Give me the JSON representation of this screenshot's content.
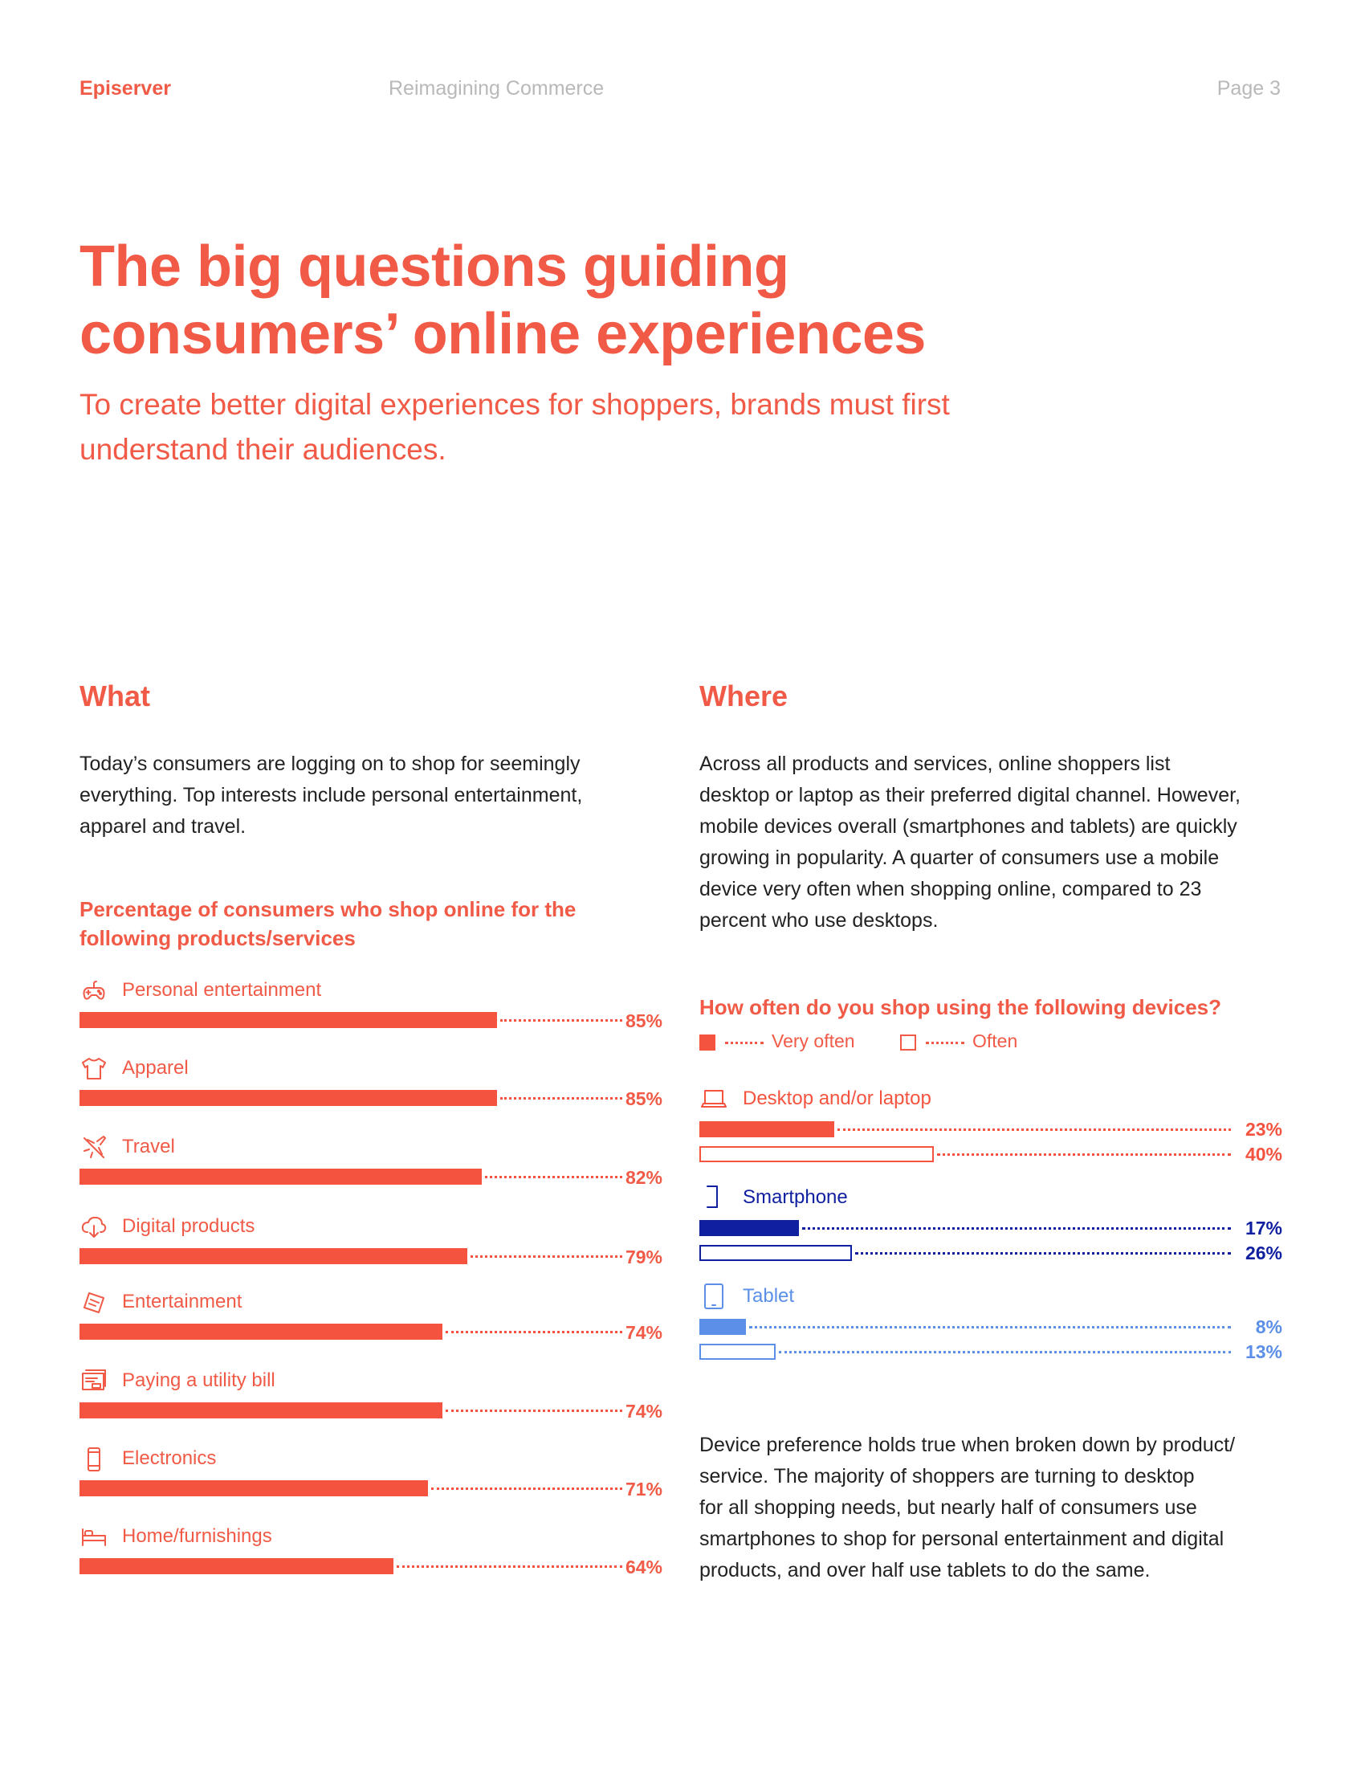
{
  "header": {
    "brand": "Episerver",
    "running_title": "Reimagining Commerce",
    "page": "Page 3"
  },
  "hero": {
    "title_lines": [
      "The big questions guiding",
      "consumers’ online experiences"
    ],
    "subtitle_lines": [
      "To create better digital experiences for shoppers, brands must first",
      "understand their audiences."
    ]
  },
  "what": {
    "heading": "What",
    "body_lines": [
      "Today’s consumers are logging on to shop for seemingly",
      "everything. Top interests include personal entertainment,",
      "apparel and travel."
    ],
    "chart_title_lines": [
      "Percentage of consumers who shop online for the",
      "following products/services"
    ]
  },
  "where": {
    "heading": "Where",
    "body_lines": [
      "Across all products and services, online shoppers list",
      "desktop or laptop as their preferred digital channel. However,",
      "mobile devices overall (smartphones and tablets) are quickly",
      "growing in popularity. A quarter of consumers use a mobile",
      "device very often when shopping online, compared to 23",
      "percent who use desktops."
    ],
    "chart_title": "How often do you shop using the following devices?",
    "legend": {
      "very_often": "Very often",
      "often": "Often"
    },
    "footer_lines": [
      "Device preference holds true when broken down by product/",
      "service. The majority of shoppers are turning to desktop",
      "for all shopping needs, but nearly half of consumers use",
      "smartphones to shop for personal entertainment and digital",
      "products, and over half use tablets to do the same."
    ]
  },
  "colors": {
    "accent": "#f05a46",
    "bar_orange": "#f4543f",
    "smartphone": "#0f1fa0",
    "tablet": "#5b8fe8"
  },
  "chart_data": [
    {
      "type": "bar",
      "orientation": "horizontal",
      "title": "Percentage of consumers who shop online for the following products/services",
      "categories": [
        "Personal entertainment",
        "Apparel",
        "Travel",
        "Digital products",
        "Entertainment",
        "Paying a utility bill",
        "Electronics",
        "Home/furnishings"
      ],
      "icons": [
        "gamepad-icon",
        "tshirt-icon",
        "plane-icon",
        "cloud-download-icon",
        "ticket-icon",
        "receipt-icon",
        "phone-icon",
        "bed-icon"
      ],
      "values": [
        85,
        85,
        82,
        79,
        74,
        74,
        71,
        64
      ],
      "labels": [
        "85%",
        "85%",
        "82%",
        "79%",
        "74%",
        "74%",
        "71%",
        "64%"
      ],
      "xlim": [
        0,
        100
      ]
    },
    {
      "type": "bar",
      "orientation": "horizontal",
      "title": "How often do you shop using the following devices?",
      "categories": [
        "Desktop and/or laptop",
        "Smartphone",
        "Tablet"
      ],
      "icons": [
        "laptop-icon",
        "smartphone-icon",
        "tablet-icon"
      ],
      "series": [
        {
          "name": "Very often",
          "values": [
            23,
            17,
            8
          ],
          "labels": [
            "23%",
            "17%",
            "8%"
          ]
        },
        {
          "name": "Often",
          "values": [
            40,
            26,
            13
          ],
          "labels": [
            "40%",
            "26%",
            "13%"
          ]
        }
      ],
      "xlim": [
        0,
        100
      ]
    }
  ]
}
